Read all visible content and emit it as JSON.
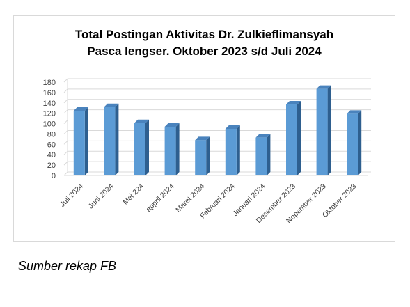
{
  "chart_data": {
    "type": "bar",
    "title_line1": "Total Postingan Aktivitas Dr. Zulkieflimansyah",
    "title_line2": "Pasca lengser.  Oktober 2023 s/d Juli 2024",
    "categories": [
      "Juli 2024",
      "Juni 2024",
      "Mei 224",
      "appril 2024",
      "Maret 2024",
      "Februari 2024",
      "Januari 2024",
      "Desember 2023",
      "Nopember 2023",
      "Oktober 2023"
    ],
    "series": [
      {
        "values": [
          125,
          132,
          101,
          94,
          68,
          90,
          73,
          137,
          167,
          119
        ]
      }
    ],
    "ylim": [
      0,
      180
    ],
    "yticks": [
      0,
      20,
      40,
      60,
      80,
      100,
      120,
      140,
      160,
      180
    ],
    "grid": true,
    "legend": "none",
    "colors": {
      "bar_front": "#5b9bd5",
      "bar_side": "#2e5f8f",
      "bar_top": "#4a83bd",
      "grid": "#d9d9d9"
    }
  },
  "caption": "Sumber rekap FB"
}
